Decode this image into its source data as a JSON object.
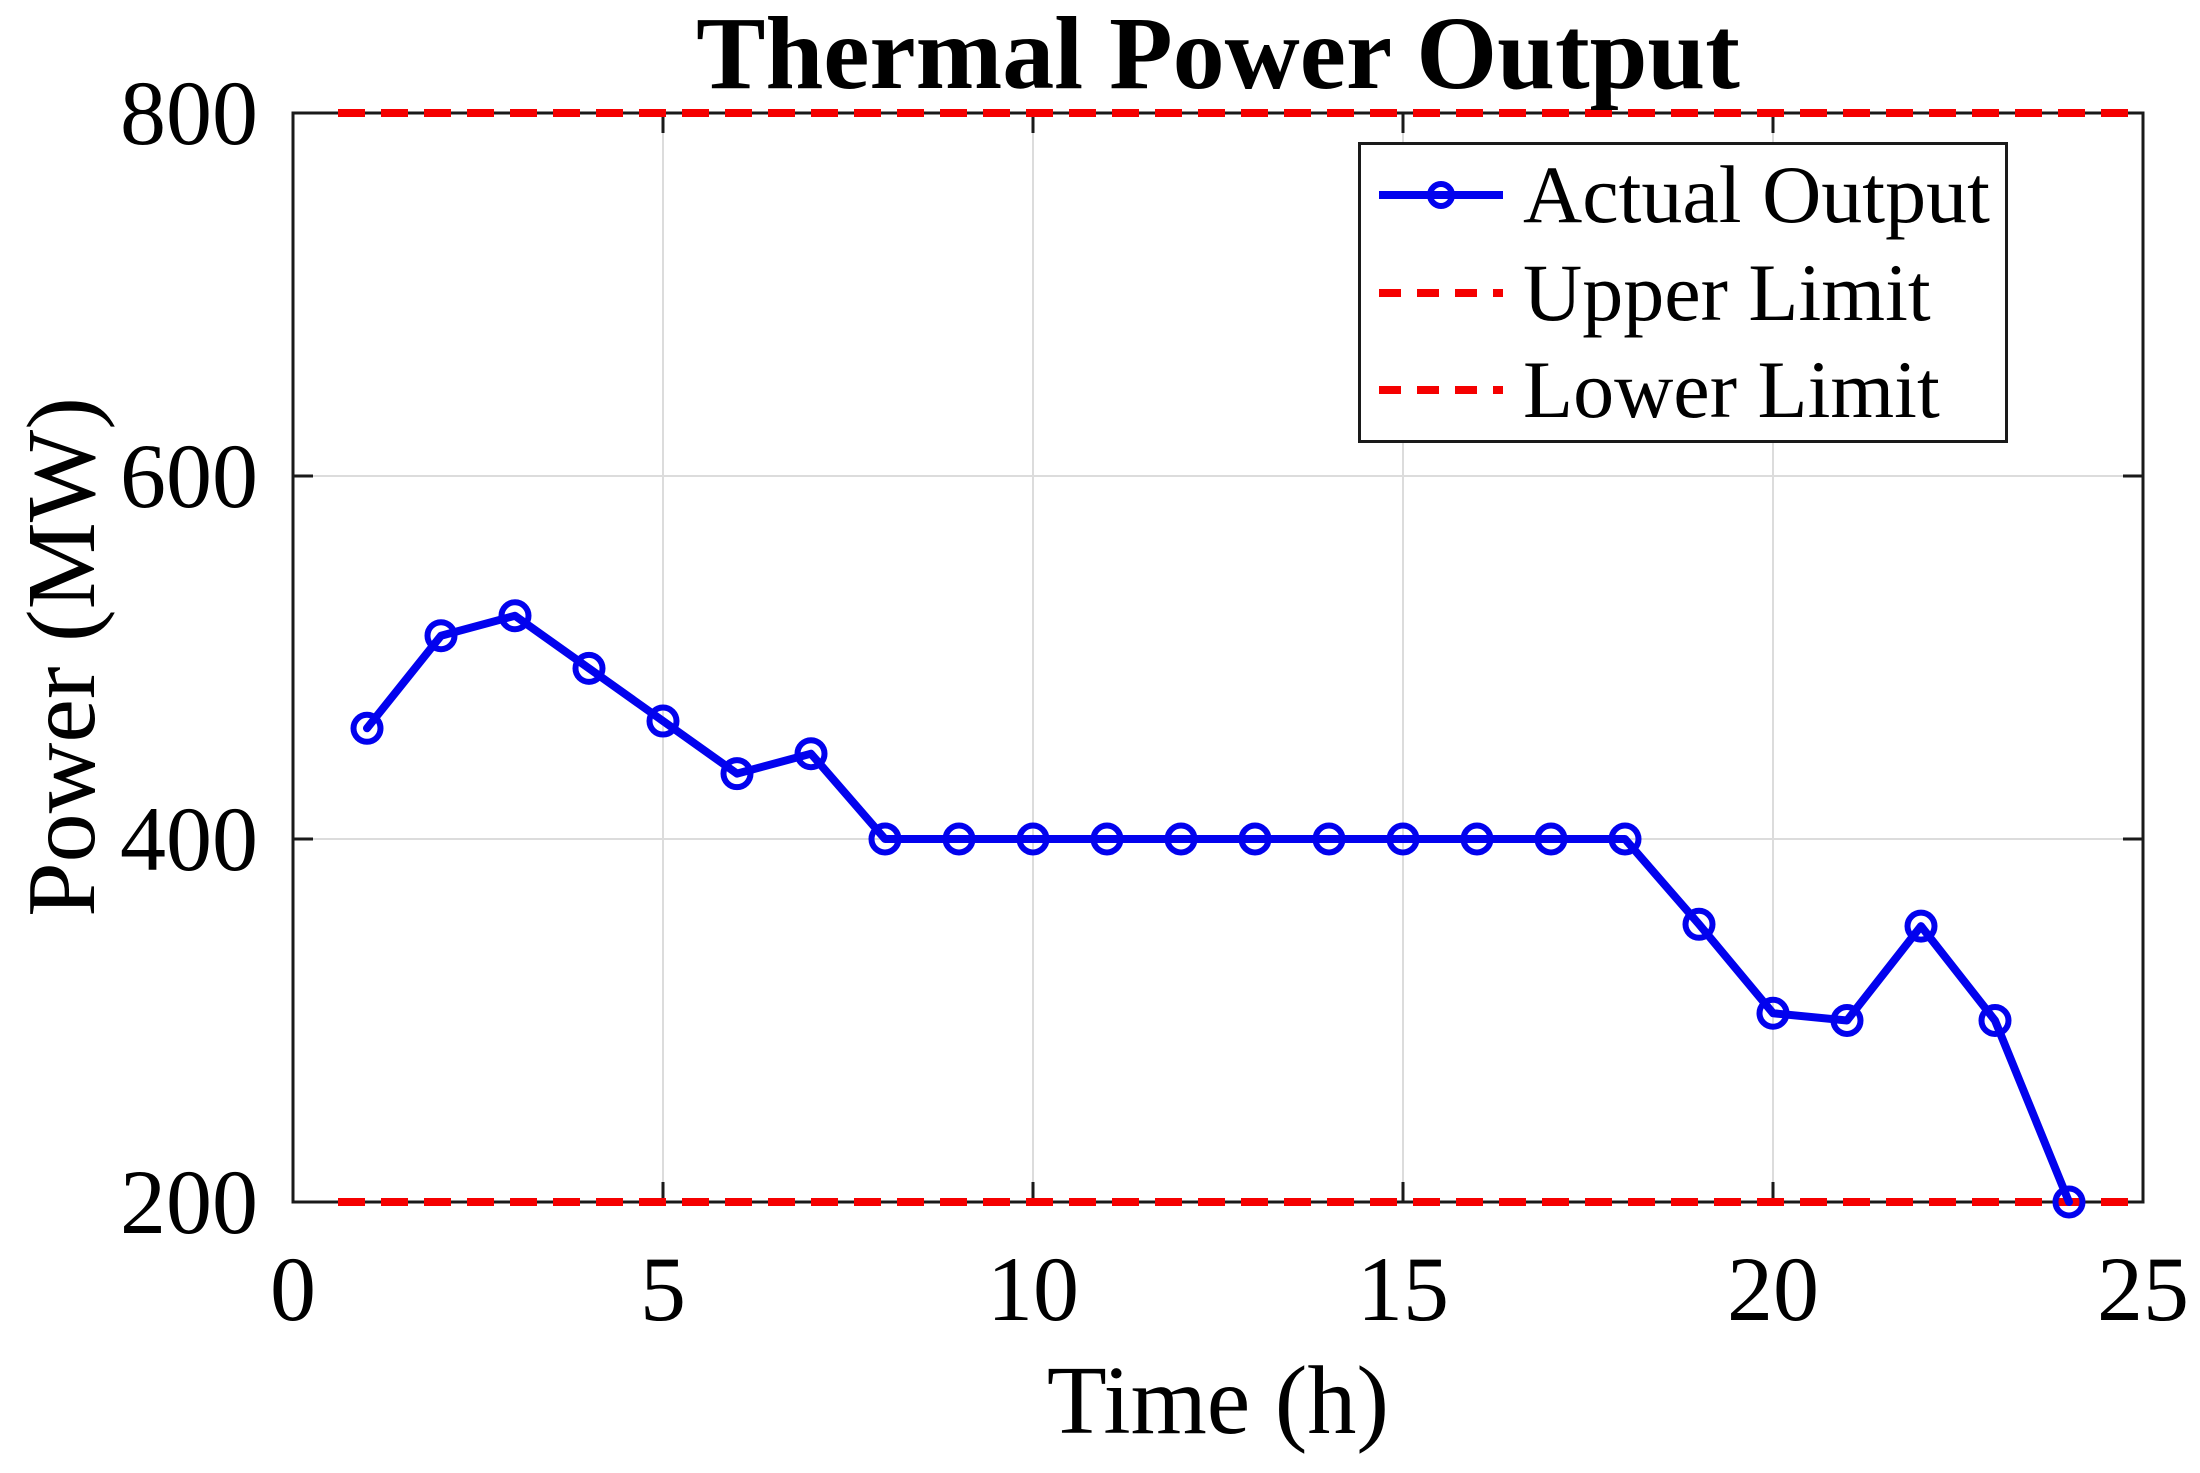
{
  "title": "Thermal Power Output",
  "x_axis_label": "Time (h)",
  "y_axis_label": "Power (MW)",
  "legend": {
    "items": [
      {
        "label": "Actual Output",
        "style": "solid-line-circle-marker",
        "color": "#0202ee"
      },
      {
        "label": "Upper Limit",
        "style": "dashed-line",
        "color": "#f50000"
      },
      {
        "label": "Lower Limit",
        "style": "dashed-line",
        "color": "#f50000"
      }
    ],
    "position": "top-right"
  },
  "colors": {
    "actual_output": "#0202ee",
    "limit_lines": "#f50000",
    "grid": "#dcdcdc",
    "frame": "#1a1a1a",
    "background": "#ffffff"
  },
  "chart_data": {
    "type": "line",
    "title": "Thermal Power Output",
    "xlabel": "Time (h)",
    "ylabel": "Power (MW)",
    "xlim": [
      0,
      25
    ],
    "ylim": [
      200,
      800
    ],
    "xticks": [
      0,
      5,
      10,
      15,
      20,
      25
    ],
    "yticks": [
      200,
      400,
      600,
      800
    ],
    "grid": true,
    "legend_position": "top-right",
    "x": [
      1,
      2,
      3,
      4,
      5,
      6,
      7,
      8,
      9,
      10,
      11,
      12,
      13,
      14,
      15,
      16,
      17,
      18,
      19,
      20,
      21,
      22,
      23,
      24
    ],
    "series": [
      {
        "name": "Actual Output",
        "style": "solid",
        "marker": "circle",
        "color": "#0202ee",
        "values": [
          461,
          512,
          523,
          494,
          465,
          436,
          447,
          400,
          400,
          400,
          400,
          400,
          400,
          400,
          400,
          400,
          400,
          400,
          353,
          304,
          300,
          352,
          300,
          200
        ]
      },
      {
        "name": "Upper Limit",
        "style": "dashed",
        "color": "#f50000",
        "constant": 800
      },
      {
        "name": "Lower Limit",
        "style": "dashed",
        "color": "#f50000",
        "constant": 200
      }
    ]
  }
}
